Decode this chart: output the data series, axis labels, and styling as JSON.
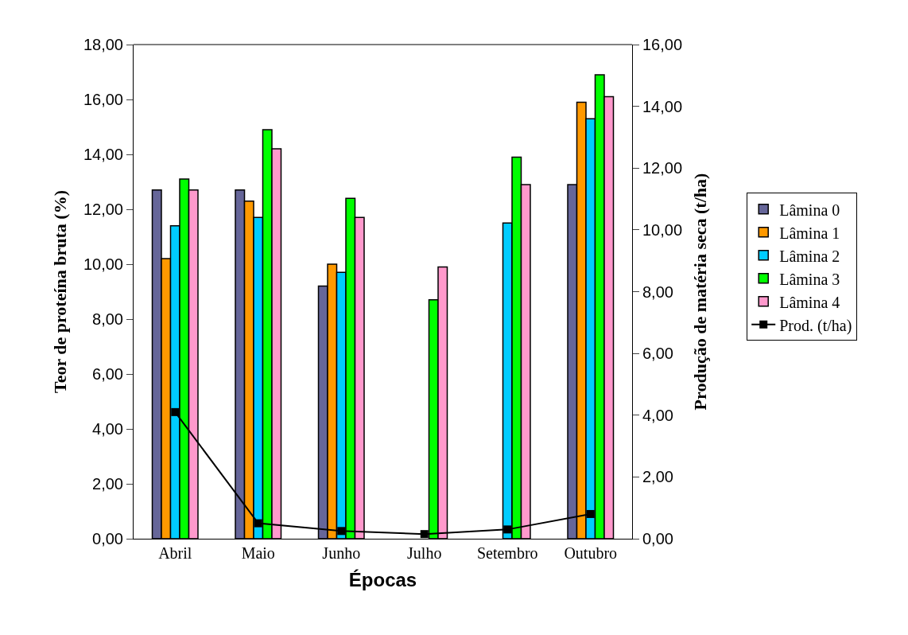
{
  "chart_data": {
    "type": "bar",
    "xlabel": "Épocas",
    "ylabel": "Teor de proteína bruta (%)",
    "y2label": "Produção de matéria seca (t/ha)",
    "categories": [
      "Abril",
      "Maio",
      "Junho",
      "Julho",
      "Setembro",
      "Outubro"
    ],
    "series": [
      {
        "name": "Lâmina 0",
        "color": "#666699",
        "values": [
          12.7,
          12.7,
          9.2,
          null,
          null,
          12.9
        ]
      },
      {
        "name": "Lâmina 1",
        "color": "#ff9900",
        "values": [
          10.2,
          12.3,
          10.0,
          null,
          null,
          15.9
        ]
      },
      {
        "name": "Lâmina 2",
        "color": "#00ccff",
        "values": [
          11.4,
          11.7,
          9.7,
          null,
          11.5,
          15.3
        ]
      },
      {
        "name": "Lâmina 3",
        "color": "#00ff00",
        "values": [
          13.1,
          14.9,
          12.4,
          8.7,
          13.9,
          16.9
        ]
      },
      {
        "name": "Lâmina 4",
        "color": "#ff99cc",
        "values": [
          12.7,
          14.2,
          11.7,
          9.9,
          12.9,
          16.1
        ]
      },
      {
        "name": "Prod. (t/ha)",
        "color": "#000000",
        "type": "line",
        "axis": "y2",
        "marker": "square",
        "line_style": "solid",
        "values": [
          4.1,
          0.5,
          0.25,
          0.15,
          0.3,
          0.8
        ]
      }
    ],
    "ylim": [
      0,
      18
    ],
    "yticks": [
      {
        "value": 0,
        "label": "0,00"
      },
      {
        "value": 2,
        "label": "2,00"
      },
      {
        "value": 4,
        "label": "4,00"
      },
      {
        "value": 6,
        "label": "6,00"
      },
      {
        "value": 8,
        "label": "8,00"
      },
      {
        "value": 10,
        "label": "10,00"
      },
      {
        "value": 12,
        "label": "12,00"
      },
      {
        "value": 14,
        "label": "14,00"
      },
      {
        "value": 16,
        "label": "16,00"
      },
      {
        "value": 18,
        "label": "18,00"
      }
    ],
    "y2lim": [
      0,
      16
    ],
    "y2ticks": [
      {
        "value": 0,
        "label": "0,00"
      },
      {
        "value": 2,
        "label": "2,00"
      },
      {
        "value": 4,
        "label": "4,00"
      },
      {
        "value": 6,
        "label": "6,00"
      },
      {
        "value": 8,
        "label": "8,00"
      },
      {
        "value": 10,
        "label": "10,00"
      },
      {
        "value": 12,
        "label": "12,00"
      },
      {
        "value": 14,
        "label": "14,00"
      },
      {
        "value": 16,
        "label": "16,00"
      }
    ],
    "legend": "right"
  }
}
